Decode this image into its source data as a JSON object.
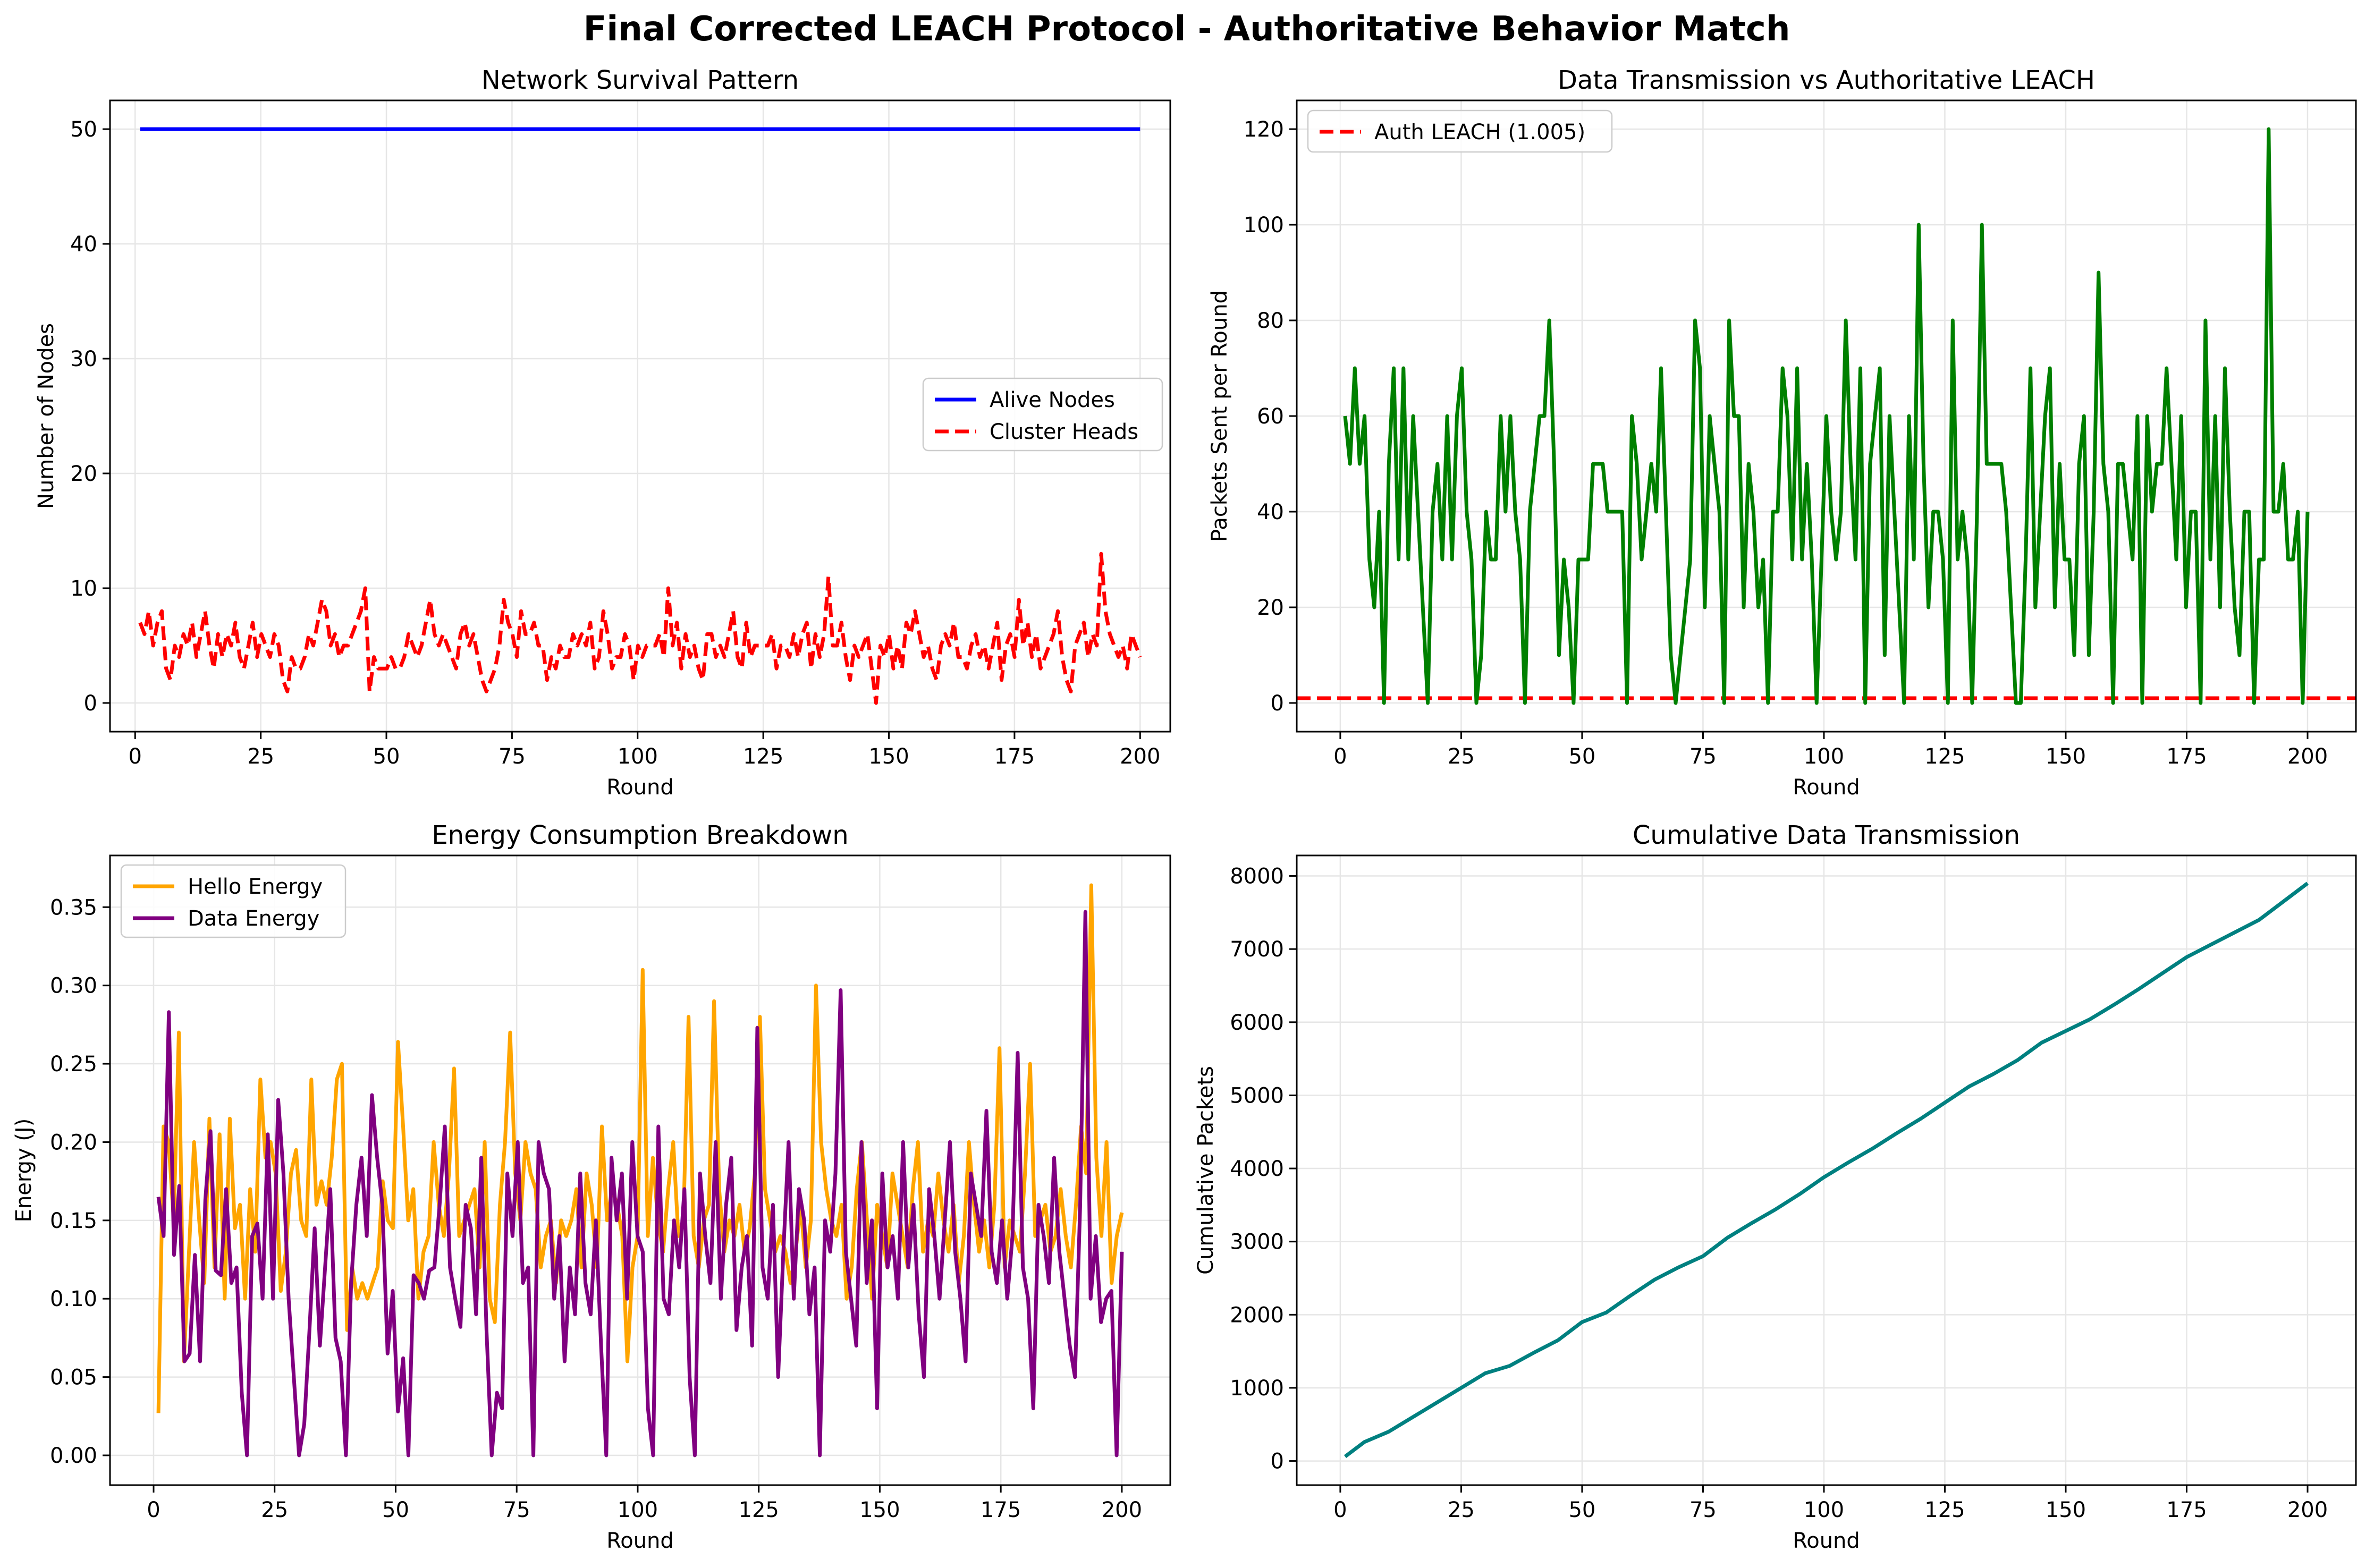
{
  "suptitle": "Final Corrected LEACH Protocol - Authoritative Behavior Match",
  "colors": {
    "alive": "#0000ff",
    "cluster": "#ff0000",
    "packets": "#008000",
    "auth": "#ff0000",
    "hello": "#ffa500",
    "data_energy": "#800080",
    "cumulative": "#008080",
    "grid": "#e6e6e6"
  },
  "chart_data": [
    {
      "type": "line",
      "title": "Network Survival Pattern",
      "xlabel": "Round",
      "ylabel": "Number of Nodes",
      "xlim": [
        -5,
        206
      ],
      "ylim": [
        -2.5,
        52.5
      ],
      "xticks": [
        0,
        25,
        50,
        75,
        100,
        125,
        150,
        175,
        200
      ],
      "yticks": [
        0,
        10,
        20,
        30,
        40,
        50
      ],
      "grid": true,
      "legend": "center-right",
      "series": [
        {
          "name": "Alive Nodes",
          "style": "solid",
          "color": "#0000ff",
          "x": [
            1,
            200
          ],
          "y": [
            50,
            50
          ]
        },
        {
          "name": "Cluster Heads",
          "style": "dashed",
          "color": "#ff0000",
          "x_start": 1,
          "y": [
            7,
            6,
            8,
            5,
            7,
            8,
            3,
            2,
            5,
            4,
            6,
            5,
            7,
            4,
            6,
            8,
            5,
            3,
            6,
            4,
            6,
            5,
            7,
            4,
            3,
            5,
            7,
            4,
            6,
            5,
            4,
            6,
            5,
            2,
            1,
            4,
            3,
            3,
            4,
            6,
            5,
            7,
            9,
            8,
            5,
            6,
            4,
            5,
            5,
            6,
            7,
            8,
            10,
            1,
            4,
            3,
            3,
            3,
            4,
            3,
            3,
            4,
            6,
            5,
            4,
            5,
            7,
            9,
            6,
            5,
            6,
            5,
            4,
            3,
            6,
            7,
            5,
            6,
            4,
            2,
            1,
            2,
            3,
            5,
            9,
            7,
            6,
            4,
            8,
            6,
            6,
            7,
            5,
            5,
            2,
            4,
            3,
            5,
            4,
            4,
            6,
            5,
            6,
            5,
            7,
            3,
            4,
            8,
            6,
            3,
            4,
            4,
            6,
            5,
            2,
            5,
            4,
            5,
            5,
            5,
            6,
            4,
            10,
            5,
            7,
            3,
            6,
            4,
            5,
            3,
            2,
            6,
            6,
            4,
            5,
            4,
            6,
            8,
            4,
            3,
            7,
            4,
            5,
            5,
            5,
            5,
            6,
            3,
            5,
            5,
            4,
            6,
            4,
            6,
            7,
            3,
            6,
            4,
            6,
            11,
            5,
            5,
            7,
            4,
            2,
            5,
            4,
            5,
            6,
            3,
            0,
            5,
            4,
            6,
            3,
            5,
            3,
            7,
            6,
            8,
            6,
            4,
            5,
            3,
            2,
            5,
            6,
            5,
            7,
            4,
            4,
            3,
            5,
            6,
            4,
            5,
            3,
            5,
            7,
            2,
            5,
            6,
            4,
            9,
            5,
            7,
            4,
            6,
            3,
            4,
            5,
            6,
            8,
            4,
            2,
            1,
            5,
            6,
            7,
            4,
            6,
            5,
            13,
            8,
            6,
            5,
            4,
            5,
            3,
            6,
            5,
            4
          ]
        }
      ]
    },
    {
      "type": "line",
      "title": "Data Transmission vs Authoritative LEACH",
      "xlabel": "Round",
      "ylabel": "Packets Sent per Round",
      "xlim": [
        -9,
        210
      ],
      "ylim": [
        -6,
        126
      ],
      "xticks": [
        0,
        25,
        50,
        75,
        100,
        125,
        150,
        175,
        200
      ],
      "yticks": [
        0,
        20,
        40,
        60,
        80,
        100,
        120
      ],
      "grid": true,
      "legend": "top-left",
      "hline": {
        "name": "Auth LEACH (1.005)",
        "value": 1.005,
        "color": "#ff0000",
        "style": "dashed"
      },
      "series": [
        {
          "name": "",
          "color": "#008000",
          "x_start": 1,
          "y": [
            60,
            50,
            70,
            50,
            60,
            30,
            20,
            40,
            0,
            50,
            70,
            30,
            70,
            30,
            60,
            40,
            20,
            0,
            40,
            50,
            30,
            60,
            30,
            60,
            70,
            40,
            30,
            0,
            10,
            40,
            30,
            30,
            60,
            40,
            60,
            40,
            30,
            0,
            40,
            50,
            60,
            60,
            80,
            50,
            10,
            30,
            20,
            0,
            30,
            30,
            30,
            50,
            50,
            50,
            40,
            40,
            40,
            40,
            0,
            60,
            50,
            30,
            40,
            50,
            40,
            70,
            40,
            10,
            0,
            10,
            20,
            30,
            80,
            70,
            20,
            60,
            50,
            40,
            0,
            80,
            60,
            60,
            20,
            50,
            40,
            20,
            30,
            0,
            40,
            40,
            70,
            60,
            30,
            70,
            30,
            50,
            30,
            0,
            30,
            60,
            40,
            30,
            40,
            80,
            50,
            30,
            70,
            0,
            50,
            60,
            70,
            10,
            60,
            40,
            20,
            0,
            60,
            30,
            100,
            50,
            20,
            40,
            40,
            30,
            0,
            80,
            30,
            40,
            30,
            0,
            40,
            100,
            50,
            50,
            50,
            50,
            40,
            20,
            0,
            0,
            30,
            70,
            20,
            40,
            60,
            70,
            20,
            50,
            30,
            30,
            10,
            50,
            60,
            10,
            40,
            90,
            50,
            40,
            0,
            50,
            50,
            40,
            30,
            60,
            0,
            60,
            40,
            50,
            50,
            70,
            50,
            30,
            60,
            20,
            40,
            40,
            0,
            80,
            30,
            60,
            20,
            70,
            40,
            20,
            10,
            40,
            40,
            0,
            30,
            30,
            120,
            40,
            40,
            50,
            30,
            30,
            40,
            0,
            40
          ]
        }
      ]
    },
    {
      "type": "line",
      "title": "Energy Consumption Breakdown",
      "xlabel": "Round",
      "ylabel": "Energy (J)",
      "xlim": [
        -9,
        210
      ],
      "ylim": [
        -0.019,
        0.383
      ],
      "xticks": [
        0,
        25,
        50,
        75,
        100,
        125,
        150,
        175,
        200
      ],
      "yticks": [
        0.0,
        0.05,
        0.1,
        0.15,
        0.2,
        0.25,
        0.3,
        0.35
      ],
      "grid": true,
      "legend": "top-left",
      "series": [
        {
          "name": "Hello Energy",
          "color": "#ffa500",
          "x_start": 1,
          "y": [
            0.027,
            0.21,
            0.2,
            0.15,
            0.27,
            0.06,
            0.13,
            0.2,
            0.15,
            0.11,
            0.215,
            0.12,
            0.205,
            0.1,
            0.215,
            0.145,
            0.16,
            0.1,
            0.17,
            0.13,
            0.24,
            0.19,
            0.2,
            0.18,
            0.105,
            0.13,
            0.18,
            0.195,
            0.15,
            0.14,
            0.24,
            0.16,
            0.175,
            0.16,
            0.19,
            0.24,
            0.25,
            0.08,
            0.12,
            0.1,
            0.11,
            0.1,
            0.11,
            0.12,
            0.175,
            0.15,
            0.145,
            0.264,
            0.21,
            0.15,
            0.17,
            0.1,
            0.13,
            0.14,
            0.2,
            0.16,
            0.14,
            0.18,
            0.247,
            0.14,
            0.15,
            0.16,
            0.17,
            0.12,
            0.2,
            0.1,
            0.085,
            0.16,
            0.2,
            0.27,
            0.18,
            0.15,
            0.2,
            0.18,
            0.17,
            0.12,
            0.14,
            0.15,
            0.11,
            0.15,
            0.14,
            0.15,
            0.17,
            0.12,
            0.18,
            0.16,
            0.12,
            0.21,
            0.15,
            0.17,
            0.16,
            0.14,
            0.06,
            0.12,
            0.14,
            0.31,
            0.14,
            0.19,
            0.15,
            0.13,
            0.17,
            0.2,
            0.14,
            0.15,
            0.28,
            0.14,
            0.12,
            0.15,
            0.16,
            0.29,
            0.17,
            0.13,
            0.15,
            0.14,
            0.16,
            0.13,
            0.145,
            0.18,
            0.28,
            0.17,
            0.15,
            0.13,
            0.14,
            0.13,
            0.11,
            0.13,
            0.16,
            0.12,
            0.15,
            0.3,
            0.2,
            0.17,
            0.15,
            0.14,
            0.16,
            0.1,
            0.12,
            0.17,
            0.2,
            0.15,
            0.1,
            0.16,
            0.14,
            0.12,
            0.18,
            0.16,
            0.14,
            0.12,
            0.17,
            0.2,
            0.13,
            0.15,
            0.14,
            0.18,
            0.15,
            0.13,
            0.16,
            0.11,
            0.14,
            0.2,
            0.16,
            0.13,
            0.15,
            0.12,
            0.16,
            0.26,
            0.12,
            0.15,
            0.14,
            0.13,
            0.18,
            0.25,
            0.14,
            0.15,
            0.16,
            0.13,
            0.14,
            0.17,
            0.14,
            0.12,
            0.16,
            0.21,
            0.18,
            0.364,
            0.19,
            0.14,
            0.2,
            0.11,
            0.14,
            0.155
          ]
        },
        {
          "name": "Data Energy",
          "color": "#800080",
          "x_start": 1,
          "y": [
            0.165,
            0.14,
            0.283,
            0.128,
            0.172,
            0.06,
            0.065,
            0.128,
            0.06,
            0.163,
            0.207,
            0.118,
            0.115,
            0.17,
            0.11,
            0.12,
            0.04,
            0.0,
            0.14,
            0.148,
            0.1,
            0.205,
            0.1,
            0.227,
            0.18,
            0.1,
            0.05,
            0.0,
            0.02,
            0.08,
            0.145,
            0.07,
            0.12,
            0.17,
            0.075,
            0.06,
            0.0,
            0.11,
            0.16,
            0.19,
            0.14,
            0.23,
            0.19,
            0.16,
            0.065,
            0.105,
            0.028,
            0.062,
            0.0,
            0.115,
            0.11,
            0.1,
            0.118,
            0.12,
            0.16,
            0.21,
            0.12,
            0.1,
            0.082,
            0.16,
            0.145,
            0.09,
            0.19,
            0.08,
            0.0,
            0.04,
            0.03,
            0.18,
            0.14,
            0.2,
            0.11,
            0.12,
            0.0,
            0.2,
            0.18,
            0.17,
            0.1,
            0.14,
            0.06,
            0.12,
            0.09,
            0.18,
            0.11,
            0.09,
            0.15,
            0.07,
            0.0,
            0.19,
            0.15,
            0.18,
            0.1,
            0.2,
            0.14,
            0.13,
            0.03,
            0.0,
            0.21,
            0.1,
            0.09,
            0.15,
            0.12,
            0.17,
            0.05,
            0.0,
            0.18,
            0.14,
            0.11,
            0.2,
            0.1,
            0.16,
            0.19,
            0.08,
            0.12,
            0.14,
            0.07,
            0.273,
            0.12,
            0.1,
            0.16,
            0.05,
            0.13,
            0.2,
            0.1,
            0.17,
            0.15,
            0.09,
            0.12,
            0.0,
            0.15,
            0.13,
            0.18,
            0.297,
            0.13,
            0.1,
            0.07,
            0.2,
            0.11,
            0.15,
            0.03,
            0.18,
            0.12,
            0.14,
            0.1,
            0.2,
            0.12,
            0.16,
            0.09,
            0.05,
            0.17,
            0.14,
            0.1,
            0.15,
            0.2,
            0.13,
            0.1,
            0.06,
            0.18,
            0.16,
            0.14,
            0.22,
            0.13,
            0.11,
            0.15,
            0.1,
            0.14,
            0.257,
            0.12,
            0.1,
            0.03,
            0.16,
            0.14,
            0.11,
            0.19,
            0.13,
            0.1,
            0.07,
            0.05,
            0.16,
            0.347,
            0.1,
            0.14,
            0.085,
            0.1,
            0.105,
            0.0,
            0.13
          ]
        }
      ]
    },
    {
      "type": "line",
      "title": "Cumulative Data Transmission",
      "xlabel": "Round",
      "ylabel": "Cumulative Packets",
      "xlim": [
        -9,
        210
      ],
      "ylim": [
        -330,
        8280
      ],
      "xticks": [
        0,
        25,
        50,
        75,
        100,
        125,
        150,
        175,
        200
      ],
      "yticks": [
        0,
        1000,
        2000,
        3000,
        4000,
        5000,
        6000,
        7000,
        8000
      ],
      "grid": true,
      "series": [
        {
          "name": "",
          "color": "#008080",
          "x": [
            1,
            5,
            10,
            15,
            20,
            25,
            30,
            35,
            40,
            45,
            50,
            55,
            60,
            65,
            70,
            75,
            80,
            85,
            90,
            95,
            100,
            105,
            110,
            115,
            120,
            125,
            130,
            135,
            140,
            145,
            150,
            155,
            160,
            165,
            170,
            175,
            180,
            185,
            190,
            195,
            200
          ],
          "y": [
            60,
            260,
            400,
            600,
            800,
            1000,
            1200,
            1300,
            1480,
            1650,
            1900,
            2030,
            2260,
            2480,
            2650,
            2800,
            3050,
            3250,
            3440,
            3650,
            3880,
            4080,
            4270,
            4480,
            4680,
            4900,
            5120,
            5290,
            5480,
            5720,
            5880,
            6040,
            6240,
            6450,
            6670,
            6890,
            7060,
            7230,
            7400,
            7650,
            7900
          ]
        }
      ]
    }
  ]
}
